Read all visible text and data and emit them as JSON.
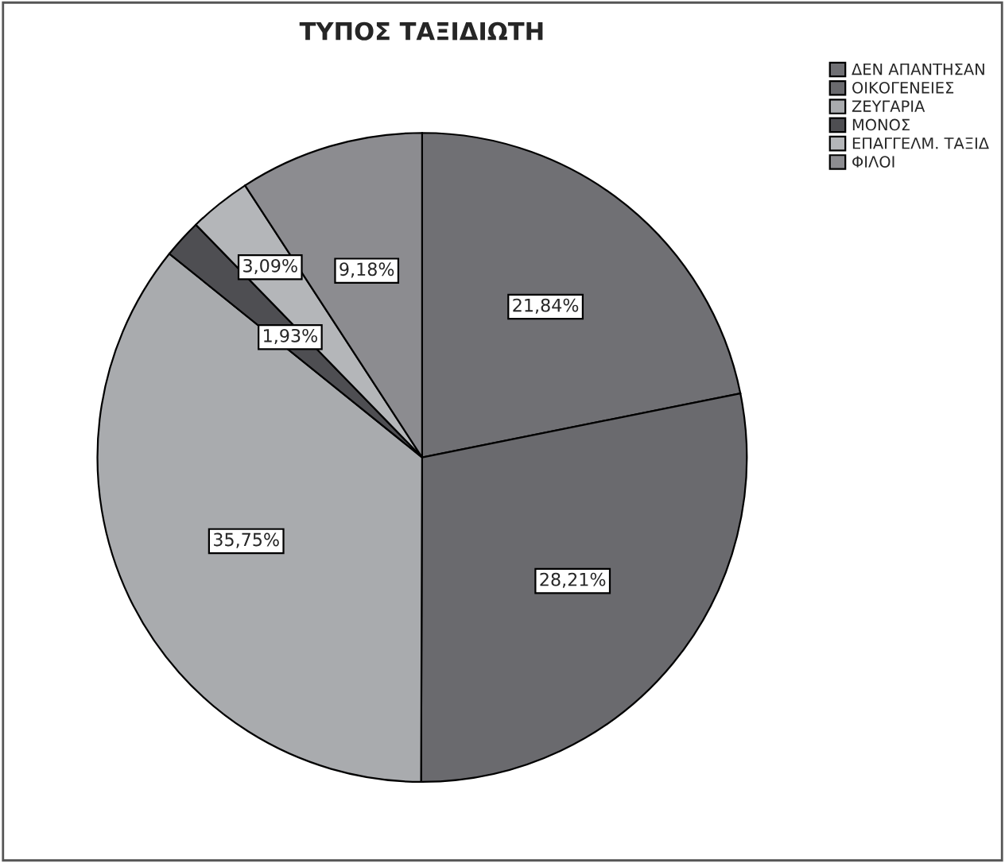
{
  "chart_data": {
    "type": "pie",
    "title": "ΤΥΠΟΣ ΤΑΞΙΔΙΩΤΗ",
    "categories": [
      "ΔΕΝ ΑΠΑΝΤΗΣΑΝ",
      "ΟΙΚΟΓΕΝΕΙΕΣ",
      "ΖΕΥΓΑΡΙΑ",
      "ΜΟΝΟΣ",
      "ΕΠΑΓΓΕΛΜ. ΤΑΞΙΔ",
      "ΦΙΛΟΙ"
    ],
    "values": [
      21.84,
      28.21,
      35.75,
      1.93,
      3.09,
      9.18
    ],
    "value_labels": [
      "21,84%",
      "28,21%",
      "35,75%",
      "1,93%",
      "3,09%",
      "9,18%"
    ],
    "colors": [
      "#707074",
      "#6a6a6e",
      "#a9abae",
      "#4e4e52",
      "#b4b6b9",
      "#8c8c90"
    ],
    "legend": "top right"
  }
}
